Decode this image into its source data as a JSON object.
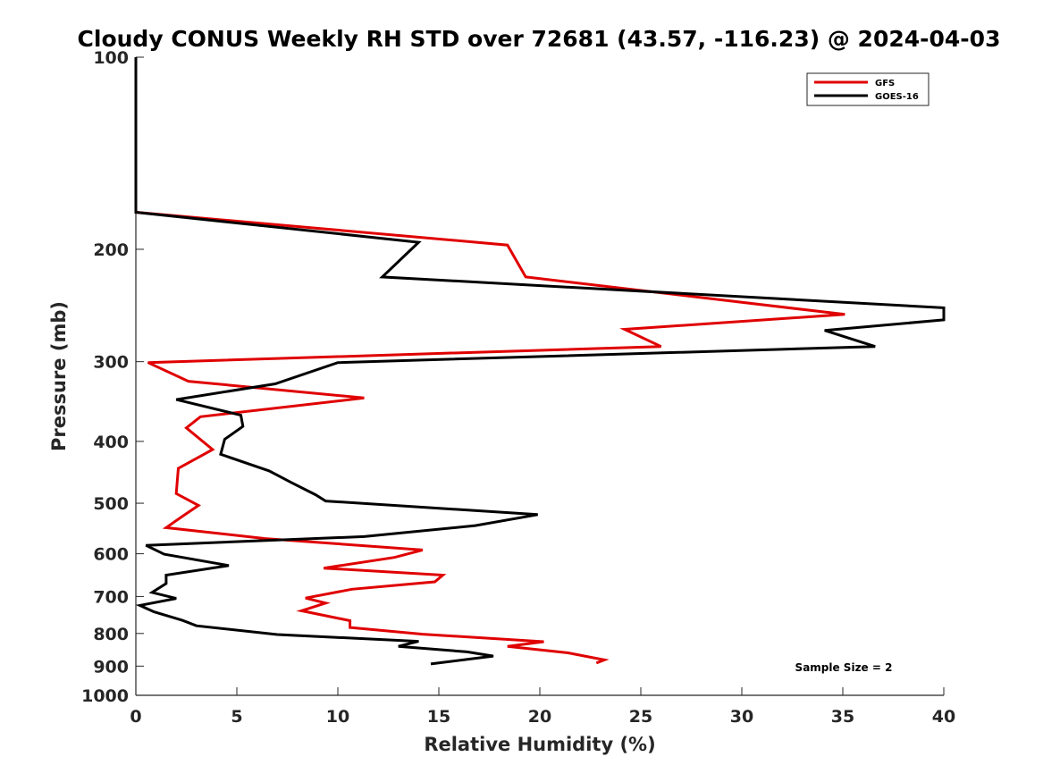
{
  "chart_data": {
    "type": "line",
    "title": "Cloudy CONUS Weekly RH STD over 72681 (43.57, -116.23) @ 2024-04-03",
    "xlabel": "Relative Humidity (%)",
    "ylabel": "Pressure (mb)",
    "xlim": [
      0,
      40
    ],
    "ylim": [
      100,
      1000
    ],
    "y_scale": "log",
    "y_reversed": true,
    "grid": false,
    "legend_position": "top-right",
    "x_ticks": [
      0,
      5,
      10,
      15,
      20,
      25,
      30,
      35,
      40
    ],
    "y_ticks": [
      100,
      200,
      300,
      400,
      500,
      600,
      700,
      800,
      900,
      1000
    ],
    "annotation": "Sample Size = 2",
    "series": [
      {
        "name": "GFS",
        "color": "#e00000",
        "points": [
          [
            0,
            100
          ],
          [
            0,
            175
          ],
          [
            18.4,
            197
          ],
          [
            19.3,
            221
          ],
          [
            35.1,
            253
          ],
          [
            24.2,
            267
          ],
          [
            26.0,
            284
          ],
          [
            0.6,
            301
          ],
          [
            2.6,
            322
          ],
          [
            11.3,
            342
          ],
          [
            3.2,
            366
          ],
          [
            2.5,
            381
          ],
          [
            3.8,
            412
          ],
          [
            2.1,
            441
          ],
          [
            2.0,
            483
          ],
          [
            3.1,
            504
          ],
          [
            2.2,
            527
          ],
          [
            1.5,
            546
          ],
          [
            6.4,
            568
          ],
          [
            14.2,
            592
          ],
          [
            12.8,
            608
          ],
          [
            9.3,
            632
          ],
          [
            15.2,
            648
          ],
          [
            14.8,
            664
          ],
          [
            10.7,
            682
          ],
          [
            8.4,
            704
          ],
          [
            9.4,
            717
          ],
          [
            8.2,
            737
          ],
          [
            10.6,
            764
          ],
          [
            10.6,
            783
          ],
          [
            14.2,
            802
          ],
          [
            20.2,
            824
          ],
          [
            18.4,
            838
          ],
          [
            21.4,
            858
          ],
          [
            23.2,
            880
          ],
          [
            22.8,
            890
          ]
        ]
      },
      {
        "name": "GOES-16",
        "color": "#000000",
        "points": [
          [
            0,
            100
          ],
          [
            0,
            175
          ],
          [
            14.0,
            195
          ],
          [
            12.2,
            221
          ],
          [
            40,
            247
          ],
          [
            40,
            258
          ],
          [
            34.1,
            268
          ],
          [
            36.6,
            284
          ],
          [
            10.0,
            301
          ],
          [
            6.9,
            325
          ],
          [
            2.0,
            344
          ],
          [
            5.2,
            364
          ],
          [
            5.3,
            379
          ],
          [
            4.4,
            397
          ],
          [
            4.2,
            419
          ],
          [
            6.6,
            445
          ],
          [
            7.7,
            464
          ],
          [
            8.9,
            485
          ],
          [
            9.4,
            496
          ],
          [
            19.9,
            521
          ],
          [
            16.8,
            542
          ],
          [
            11.3,
            564
          ],
          [
            0.5,
            582
          ],
          [
            1.4,
            601
          ],
          [
            4.6,
            626
          ],
          [
            1.5,
            648
          ],
          [
            1.5,
            668
          ],
          [
            0.8,
            690
          ],
          [
            2.0,
            705
          ],
          [
            0.2,
            723
          ],
          [
            0.9,
            740
          ],
          [
            2.3,
            763
          ],
          [
            3.0,
            778
          ],
          [
            7.0,
            803
          ],
          [
            14.0,
            823
          ],
          [
            13.0,
            838
          ],
          [
            16.4,
            855
          ],
          [
            17.7,
            868
          ],
          [
            14.6,
            893
          ]
        ]
      }
    ]
  }
}
